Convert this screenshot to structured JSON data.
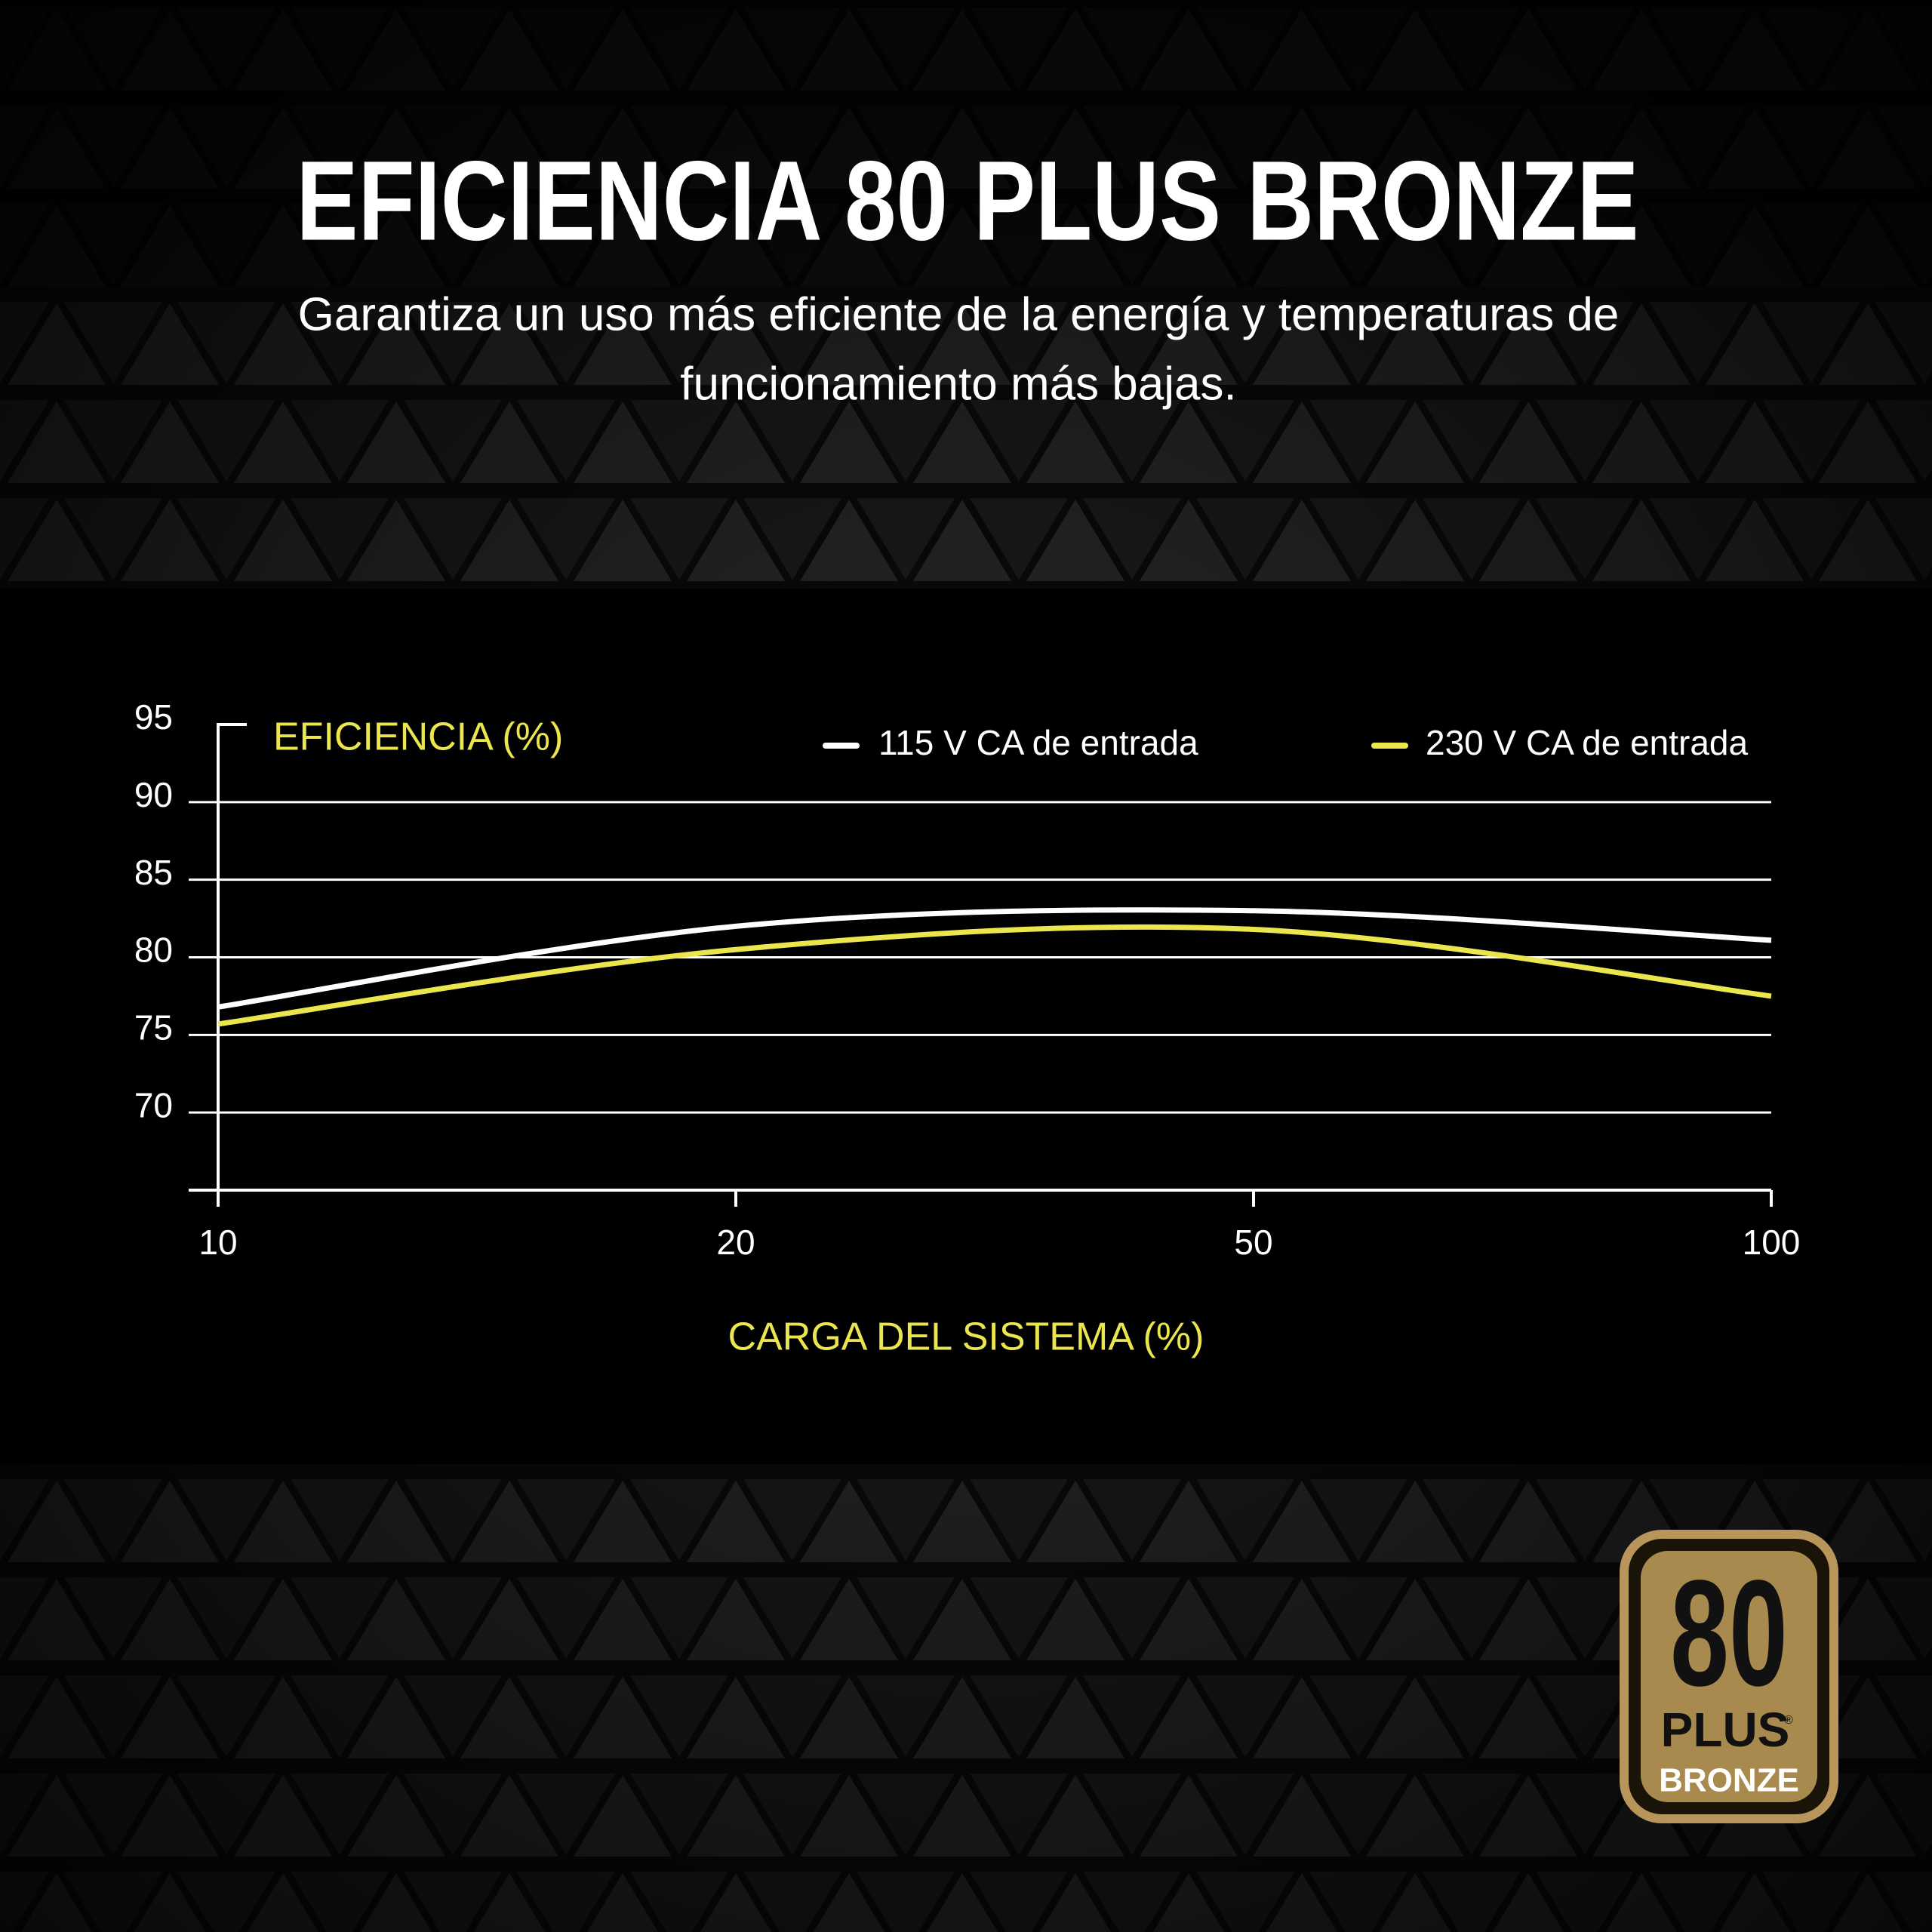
{
  "chart_data": {
    "type": "line",
    "title": "EFICIENCIA 80 PLUS BRONZE",
    "subtitle": [
      "Garantiza un uso más eficiente de la energía y temperaturas de",
      "funcionamiento más bajas."
    ],
    "y_label": "EFICIENCIA (%)",
    "x_label": "CARGA DEL SISTEMA (%)",
    "categories": [
      "10",
      "20",
      "50",
      "100"
    ],
    "series": [
      {
        "name": "115 V CA de entrada",
        "color": "#ffffff",
        "values": [
          76.8,
          82,
          83,
          81.1
        ]
      },
      {
        "name": "230 V CA de entrada",
        "color": "#ece64e",
        "values": [
          75.7,
          80.5,
          81.8,
          77.5
        ]
      }
    ],
    "ylim": [
      65,
      95
    ],
    "yticks": [
      70,
      75,
      80,
      85,
      90,
      95
    ],
    "grid": true
  },
  "badge": {
    "number": "80",
    "plus": "PLUS",
    "mark": "®",
    "level": "BRONZE"
  }
}
